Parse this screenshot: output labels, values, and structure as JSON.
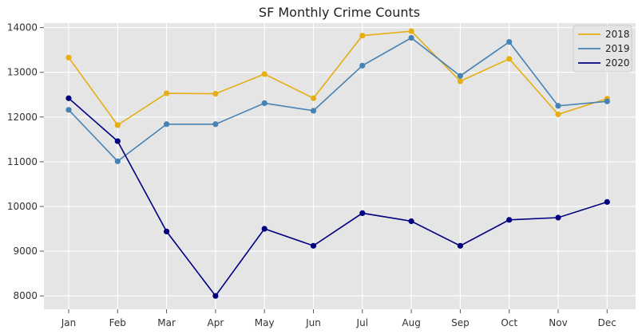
{
  "chart_data": {
    "type": "line",
    "title": "SF Monthly Crime Counts",
    "xlabel": "",
    "ylabel": "",
    "categories": [
      "Jan",
      "Feb",
      "Mar",
      "Apr",
      "May",
      "Jun",
      "Jul",
      "Aug",
      "Sep",
      "Oct",
      "Nov",
      "Dec"
    ],
    "ylim": [
      7700,
      14100
    ],
    "yticks": [
      8000,
      9000,
      10000,
      11000,
      12000,
      13000,
      14000
    ],
    "grid": true,
    "legend_position": "top-right",
    "markers": true,
    "series": [
      {
        "name": "2018",
        "color": "#E5AE12",
        "values": [
          13330,
          11820,
          12530,
          12520,
          12960,
          12420,
          13820,
          13920,
          12800,
          13300,
          12060,
          12410
        ]
      },
      {
        "name": "2019",
        "color": "#4682B4",
        "values": [
          12160,
          11010,
          11840,
          11840,
          12310,
          12140,
          13150,
          13770,
          12920,
          13680,
          12250,
          12350
        ]
      },
      {
        "name": "2020",
        "color": "#000080",
        "values": [
          12420,
          11460,
          9440,
          8000,
          9500,
          9120,
          9850,
          9670,
          9120,
          9700,
          9750,
          10100
        ]
      }
    ]
  }
}
